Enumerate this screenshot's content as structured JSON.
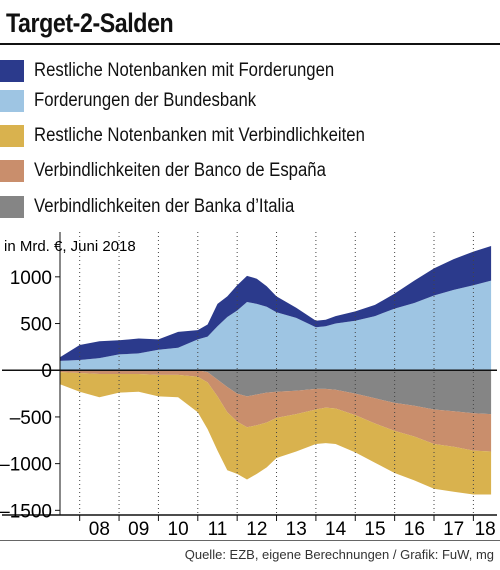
{
  "chart_data": {
    "type": "area",
    "title": "Target-2-Salden",
    "unit_label": "in Mrd. €, Juni 2018",
    "x": [
      2007.5,
      2008.0,
      2008.5,
      2009.0,
      2009.5,
      2010.0,
      2010.5,
      2011.0,
      2011.25,
      2011.5,
      2011.75,
      2012.0,
      2012.25,
      2012.5,
      2012.75,
      2013.0,
      2013.5,
      2014.0,
      2014.25,
      2014.5,
      2015.0,
      2015.5,
      2016.0,
      2016.5,
      2017.0,
      2017.5,
      2018.0,
      2018.45
    ],
    "series": [
      {
        "name": "Restliche Notenbanken mit Forderungen",
        "color": "#2b3a8c",
        "role": "positive",
        "values": [
          40,
          160,
          180,
          150,
          160,
          110,
          170,
          100,
          130,
          240,
          220,
          270,
          280,
          270,
          220,
          170,
          110,
          70,
          70,
          80,
          100,
          120,
          160,
          240,
          290,
          330,
          360,
          370
        ]
      },
      {
        "name": "Forderungen der Bundesbank",
        "color": "#9ec5e3",
        "role": "positive",
        "values": [
          100,
          110,
          130,
          170,
          180,
          220,
          240,
          330,
          360,
          470,
          570,
          640,
          730,
          710,
          680,
          620,
          560,
          460,
          470,
          500,
          530,
          580,
          660,
          720,
          800,
          860,
          910,
          960
        ]
      },
      {
        "name": "Restliche Notenbanken mit Verbindlichkeiten",
        "color": "#d9b24e",
        "role": "negative",
        "values": [
          -130,
          -200,
          -250,
          -200,
          -190,
          -230,
          -240,
          -380,
          -500,
          -580,
          -620,
          -560,
          -560,
          -520,
          -480,
          -430,
          -400,
          -370,
          -380,
          -380,
          -400,
          -420,
          -450,
          -470,
          -480,
          -480,
          -470,
          -460
        ]
      },
      {
        "name": "Verbindlichkeiten der Banco de España",
        "color": "#c98e6c",
        "role": "negative",
        "values": [
          -20,
          -30,
          -40,
          -40,
          -40,
          -50,
          -50,
          -70,
          -110,
          -180,
          -270,
          -300,
          -330,
          -330,
          -320,
          -280,
          -250,
          -220,
          -200,
          -200,
          -230,
          -270,
          -300,
          -330,
          -370,
          -380,
          -400,
          -400
        ]
      },
      {
        "name": "Verbindlichkeiten der Banka d’Italia",
        "color": "#858585",
        "role": "negative",
        "values": [
          0,
          0,
          0,
          0,
          0,
          0,
          0,
          0,
          -20,
          -100,
          -180,
          -250,
          -280,
          -260,
          -240,
          -230,
          -220,
          -200,
          -200,
          -210,
          -250,
          -300,
          -350,
          -380,
          -420,
          -440,
          -460,
          -470
        ]
      }
    ],
    "xlim": [
      2007.5,
      2018.6
    ],
    "ylim": [
      -1550,
      1480
    ],
    "y_ticks": [
      -1500,
      -1000,
      -500,
      0,
      500,
      1000
    ],
    "y_tick_labels": [
      "–1500",
      "–1000",
      "–500",
      "0",
      "500",
      "1000"
    ],
    "x_tick_labels": [
      {
        "label": "08",
        "x": 2008.5
      },
      {
        "label": "09",
        "x": 2009.5
      },
      {
        "label": "10",
        "x": 2010.5
      },
      {
        "label": "11",
        "x": 2011.5
      },
      {
        "label": "12",
        "x": 2012.5
      },
      {
        "label": "13",
        "x": 2013.5
      },
      {
        "label": "14",
        "x": 2014.5
      },
      {
        "label": "15",
        "x": 2015.5
      },
      {
        "label": "16",
        "x": 2016.5
      },
      {
        "label": "17",
        "x": 2017.5
      },
      {
        "label": "18",
        "x": 2018.3
      }
    ],
    "grid": "vertical-dotted",
    "legend_position": "top"
  },
  "source": "Quelle: EZB, eigene Berechnungen / Grafik: FuW, mg"
}
